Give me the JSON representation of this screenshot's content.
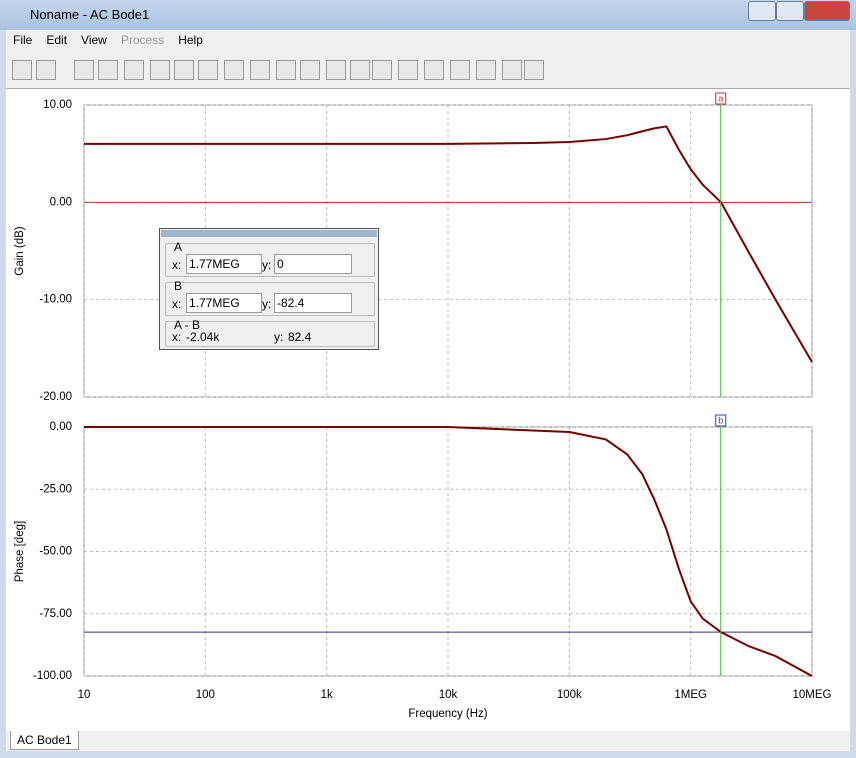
{
  "window": {
    "title": "Noname - AC Bode1"
  },
  "menu": [
    "File",
    "Edit",
    "View",
    "Process",
    "Help"
  ],
  "cursor_panel": {
    "a": {
      "heading": "A",
      "x_label": "x:",
      "x": "1.77MEG",
      "y_label": "y:",
      "y": "0"
    },
    "b": {
      "heading": "B",
      "x_label": "x:",
      "x": "1.77MEG",
      "y_label": "y:",
      "y": "-82.4"
    },
    "diff": {
      "heading": "A - B",
      "x_label": "x:",
      "x": "-2.04k",
      "y_label": "y:",
      "y": "82.4"
    }
  },
  "tab": "AC Bode1",
  "chart_data": [
    {
      "type": "line",
      "y_label": "Gain (dB)",
      "log_x": true,
      "grid": true,
      "x": [
        10,
        100,
        1000,
        10000,
        50000,
        100000,
        200000,
        300000,
        400000,
        500000,
        630000,
        800000,
        1000000,
        1260000,
        1780000,
        3000000,
        5000000,
        10000000
      ],
      "values": [
        6,
        6,
        6,
        6,
        6.1,
        6.2,
        6.5,
        6.9,
        7.3,
        7.6,
        7.8,
        5.4,
        3.4,
        1.8,
        0,
        -5.1,
        -10,
        -16.4
      ],
      "color": "#7a0000",
      "xlim": [
        10,
        10000000
      ],
      "xticks": [
        10,
        100,
        1000,
        10000,
        100000,
        1000000,
        10000000
      ],
      "ylim": [
        -20,
        10
      ],
      "yticks": [
        {
          "value": 10,
          "label": "10.00"
        },
        {
          "value": 0,
          "label": "0.00"
        },
        {
          "value": -10,
          "label": "-10.00"
        },
        {
          "value": -20,
          "label": "-20.00"
        }
      ],
      "ref_y": 0,
      "ref_color": "#c83030",
      "cursor_x": 1770000,
      "cursor_label": "a",
      "cursor_marker_color": "#c83030",
      "cursor_color": "#30c030"
    },
    {
      "type": "line",
      "y_label": "Phase [deg]",
      "x_label": "Frequency (Hz)",
      "log_x": true,
      "grid": true,
      "x": [
        10,
        100,
        1000,
        10000,
        100000,
        200000,
        300000,
        400000,
        500000,
        630000,
        800000,
        1000000,
        1260000,
        1780000,
        3000000,
        5000000,
        10000000
      ],
      "values": [
        0,
        0,
        0,
        0,
        -2,
        -5,
        -11,
        -19,
        -29,
        -41,
        -57,
        -70,
        -77,
        -82.4,
        -88,
        -92,
        -100
      ],
      "color": "#7a0000",
      "xlim": [
        10,
        10000000
      ],
      "xticks": [
        10,
        100,
        {
          "value": 1000,
          "label": "1k"
        },
        {
          "value": 10000,
          "label": "10k"
        },
        {
          "value": 100000,
          "label": "100k"
        },
        {
          "value": 1000000,
          "label": "1MEG"
        },
        {
          "value": 10000000,
          "label": "10MEG"
        }
      ],
      "ylim": [
        -100,
        0
      ],
      "yticks": [
        {
          "value": 0,
          "label": "0.00"
        },
        {
          "value": -25,
          "label": "-25.00"
        },
        {
          "value": -50,
          "label": "-50.00"
        },
        {
          "value": -75,
          "label": "-75.00"
        },
        {
          "value": -100,
          "label": "-100.00"
        }
      ],
      "ref_y": -82.4,
      "ref_color": "#303080",
      "cursor_x": 1770000,
      "cursor_label": "b",
      "cursor_marker_color": "#3040c0",
      "cursor_color": "#30c030"
    }
  ]
}
